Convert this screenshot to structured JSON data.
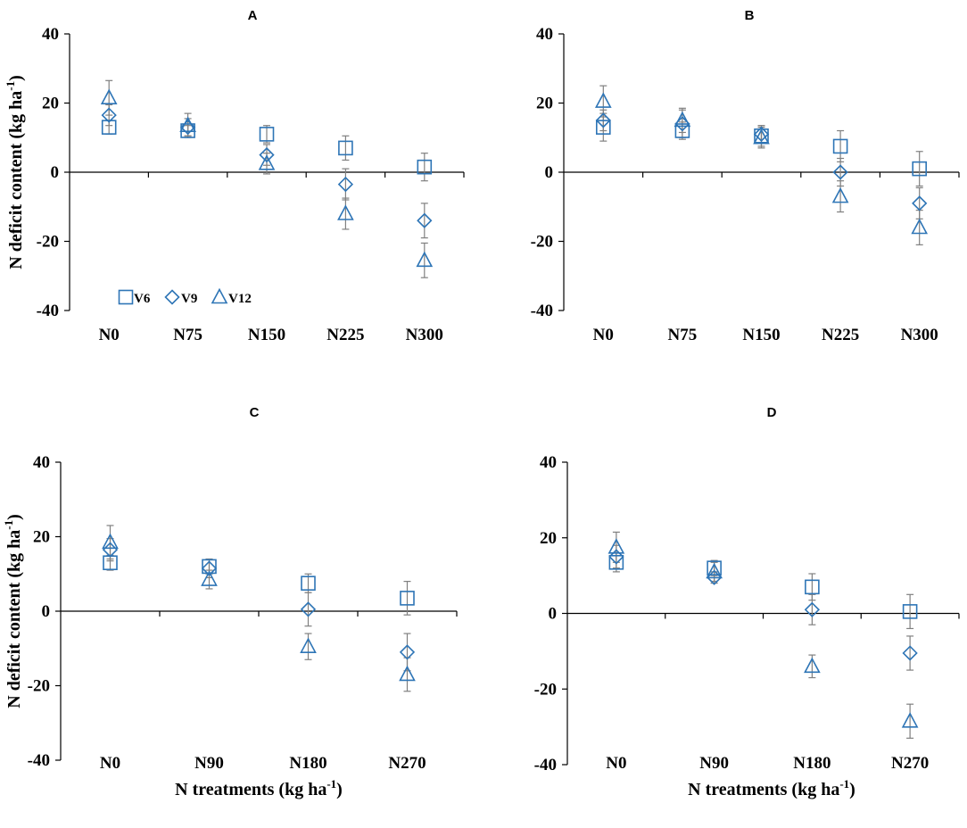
{
  "colors": {
    "marker": "#2e75b6",
    "error_bar": "#808080",
    "axis": "#000000"
  },
  "chart_data": [
    {
      "type": "scatter",
      "title": "A",
      "xlabel": "",
      "ylabel": "N deficit content (kg ha",
      "ylabel_sup": "-1",
      "ylabel_close": ")",
      "ylim": [
        -40,
        40
      ],
      "yticks": [
        "40",
        "20",
        "0",
        "-20",
        "-40"
      ],
      "categories": [
        "N0",
        "N75",
        "N150",
        "N225",
        "N300"
      ],
      "legend": {
        "position": "bottom-left",
        "entries": [
          "V6",
          "V9",
          "V12"
        ]
      },
      "series": [
        {
          "name": "V6",
          "marker": "square",
          "values": [
            13,
            12,
            11,
            7,
            1.5
          ],
          "errors": [
            2,
            1.5,
            2.5,
            3.5,
            4
          ]
        },
        {
          "name": "V9",
          "marker": "diamond",
          "values": [
            16.5,
            13,
            5,
            -3.5,
            -14
          ],
          "errors": [
            3,
            2.5,
            3,
            4.5,
            5
          ]
        },
        {
          "name": "V12",
          "marker": "triangle",
          "values": [
            21.5,
            13.5,
            2.5,
            -12,
            -25.5
          ],
          "errors": [
            5,
            3.5,
            3,
            4.5,
            5
          ]
        }
      ]
    },
    {
      "type": "scatter",
      "title": "B",
      "xlabel": "",
      "ylabel": "",
      "ylim": [
        -40,
        40
      ],
      "yticks": [
        "40",
        "20",
        "0",
        "-20",
        "-40"
      ],
      "categories": [
        "N0",
        "N75",
        "N150",
        "N225",
        "N300"
      ],
      "series": [
        {
          "name": "V6",
          "marker": "square",
          "values": [
            13,
            12,
            10.5,
            7.5,
            1
          ],
          "errors": [
            4,
            2.5,
            3,
            4.5,
            5
          ]
        },
        {
          "name": "V9",
          "marker": "diamond",
          "values": [
            15,
            14,
            11,
            0,
            -9
          ],
          "errors": [
            3,
            4,
            2.5,
            4,
            4.5
          ]
        },
        {
          "name": "V12",
          "marker": "triangle",
          "values": [
            20.5,
            15,
            10,
            -7,
            -16
          ],
          "errors": [
            4.5,
            3.5,
            3,
            4.5,
            5
          ]
        }
      ]
    },
    {
      "type": "scatter",
      "title": "C",
      "xlabel": "N treatments (kg ha",
      "xlabel_sup": "-1",
      "xlabel_close": ")",
      "ylabel": "N deficit content (kg ha",
      "ylabel_sup": "-1",
      "ylabel_close": ")",
      "ylim": [
        -40,
        40
      ],
      "yticks": [
        "40",
        "20",
        "0",
        "-20",
        "-40"
      ],
      "categories": [
        "N0",
        "N90",
        "N180",
        "N270"
      ],
      "series": [
        {
          "name": "V6",
          "marker": "square",
          "values": [
            13,
            12,
            7.5,
            3.5
          ],
          "errors": [
            2,
            2,
            2.5,
            4.5
          ]
        },
        {
          "name": "V9",
          "marker": "diamond",
          "values": [
            16.5,
            11.5,
            0.5,
            -11
          ],
          "errors": [
            3,
            2.5,
            4.5,
            5
          ]
        },
        {
          "name": "V12",
          "marker": "triangle",
          "values": [
            18.5,
            8.5,
            -9.5,
            -17
          ],
          "errors": [
            4.5,
            2.5,
            3.5,
            4.5
          ]
        }
      ]
    },
    {
      "type": "scatter",
      "title": "D",
      "xlabel": "N treatments (kg ha",
      "xlabel_sup": "-1",
      "xlabel_close": ")",
      "ylabel": "",
      "ylim": [
        -40,
        40
      ],
      "yticks": [
        "40",
        "20",
        "0",
        "-20",
        "-40"
      ],
      "categories": [
        "N0",
        "N90",
        "N180",
        "N270"
      ],
      "series": [
        {
          "name": "V6",
          "marker": "square",
          "values": [
            13.5,
            12,
            7,
            0.5
          ],
          "errors": [
            2.5,
            2,
            3.5,
            4.5
          ]
        },
        {
          "name": "V9",
          "marker": "diamond",
          "values": [
            15,
            9.5,
            1,
            -10.5
          ],
          "errors": [
            3,
            1.5,
            4,
            4.5
          ]
        },
        {
          "name": "V12",
          "marker": "triangle",
          "values": [
            17.5,
            11,
            -14,
            -28.5
          ],
          "errors": [
            4,
            2.5,
            3,
            4.5
          ]
        }
      ]
    }
  ]
}
